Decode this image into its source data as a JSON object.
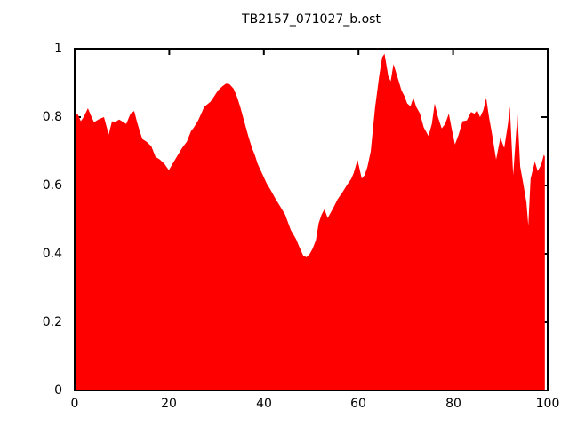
{
  "chart_data": {
    "type": "area",
    "title": "TB2157_071027_b.ost",
    "xlabel": "",
    "ylabel": "",
    "xlim": [
      0,
      100
    ],
    "ylim": [
      0,
      1
    ],
    "xticks": [
      0,
      20,
      40,
      60,
      80,
      100
    ],
    "xtick_labels": [
      "0",
      "20",
      "40",
      "60",
      "80",
      "100"
    ],
    "yticks": [
      0,
      0.2,
      0.4,
      0.6,
      0.8,
      1
    ],
    "ytick_labels": [
      "0",
      "0.2",
      "0.4",
      "0.6",
      "0.8",
      "1"
    ],
    "grid": false,
    "legend": "none",
    "tick_style": "inward-mirrored",
    "background": "#ffffff",
    "border_color": "#000000",
    "fill_color": "#ff0000",
    "series": [
      {
        "name": "TB2157_071027_b.ost",
        "x": [
          0,
          0.6,
          1.3,
          1.9,
          2.8,
          3.4,
          4.1,
          5.0,
          5.6,
          6.2,
          7.2,
          7.9,
          8.5,
          9.4,
          10.0,
          10.9,
          11.8,
          12.6,
          13.2,
          13.7,
          14.3,
          15.2,
          16.2,
          17.1,
          18.0,
          19.0,
          19.9,
          20.9,
          21.8,
          22.7,
          23.7,
          24.6,
          25.2,
          26.1,
          27.4,
          28.7,
          29.3,
          30.3,
          31.2,
          32.0,
          32.7,
          33.6,
          34.4,
          35.0,
          35.6,
          36.2,
          36.8,
          37.5,
          38.1,
          38.7,
          39.3,
          40.0,
          40.6,
          41.5,
          42.5,
          43.4,
          44.5,
          45.7,
          46.8,
          47.5,
          48.3,
          49.0,
          49.7,
          50.3,
          51.0,
          51.6,
          52.2,
          52.8,
          53.5,
          54.7,
          55.6,
          56.6,
          57.5,
          58.5,
          59.0,
          59.8,
          60.7,
          61.3,
          61.9,
          62.6,
          63.5,
          64.4,
          65.0,
          65.5,
          66.3,
          66.8,
          67.4,
          68.4,
          69.1,
          69.7,
          70.3,
          71.0,
          71.6,
          72.2,
          73.0,
          73.8,
          74.8,
          75.5,
          76.1,
          76.8,
          77.6,
          78.3,
          79.1,
          79.8,
          80.4,
          81.2,
          82.0,
          82.9,
          83.8,
          84.5,
          85.1,
          85.7,
          86.4,
          87.0,
          87.6,
          88.2,
          89.1,
          90.0,
          90.8,
          91.6,
          92.0,
          92.7,
          93.6,
          94.2,
          94.9,
          95.5,
          95.9,
          96.4,
          97.3,
          97.9,
          98.6,
          99.2,
          99.4
        ],
        "y": [
          0.8,
          0.81,
          0.788,
          0.8,
          0.826,
          0.806,
          0.785,
          0.793,
          0.797,
          0.8,
          0.749,
          0.788,
          0.785,
          0.793,
          0.788,
          0.78,
          0.81,
          0.818,
          0.785,
          0.762,
          0.736,
          0.728,
          0.715,
          0.684,
          0.676,
          0.663,
          0.645,
          0.668,
          0.689,
          0.71,
          0.728,
          0.759,
          0.77,
          0.79,
          0.83,
          0.845,
          0.857,
          0.878,
          0.89,
          0.898,
          0.897,
          0.883,
          0.857,
          0.83,
          0.8,
          0.77,
          0.74,
          0.71,
          0.689,
          0.663,
          0.645,
          0.624,
          0.606,
          0.585,
          0.56,
          0.54,
          0.515,
          0.47,
          0.443,
          0.42,
          0.395,
          0.39,
          0.4,
          0.415,
          0.44,
          0.49,
          0.515,
          0.53,
          0.505,
          0.535,
          0.56,
          0.58,
          0.6,
          0.62,
          0.637,
          0.675,
          0.62,
          0.63,
          0.655,
          0.7,
          0.827,
          0.922,
          0.975,
          0.985,
          0.92,
          0.905,
          0.955,
          0.91,
          0.878,
          0.862,
          0.84,
          0.832,
          0.857,
          0.83,
          0.81,
          0.77,
          0.745,
          0.78,
          0.84,
          0.8,
          0.767,
          0.78,
          0.81,
          0.76,
          0.72,
          0.75,
          0.788,
          0.79,
          0.815,
          0.81,
          0.82,
          0.8,
          0.82,
          0.857,
          0.8,
          0.754,
          0.676,
          0.74,
          0.71,
          0.78,
          0.831,
          0.63,
          0.81,
          0.655,
          0.6,
          0.55,
          0.483,
          0.62,
          0.67,
          0.642,
          0.66,
          0.69,
          0.685
        ]
      }
    ]
  }
}
